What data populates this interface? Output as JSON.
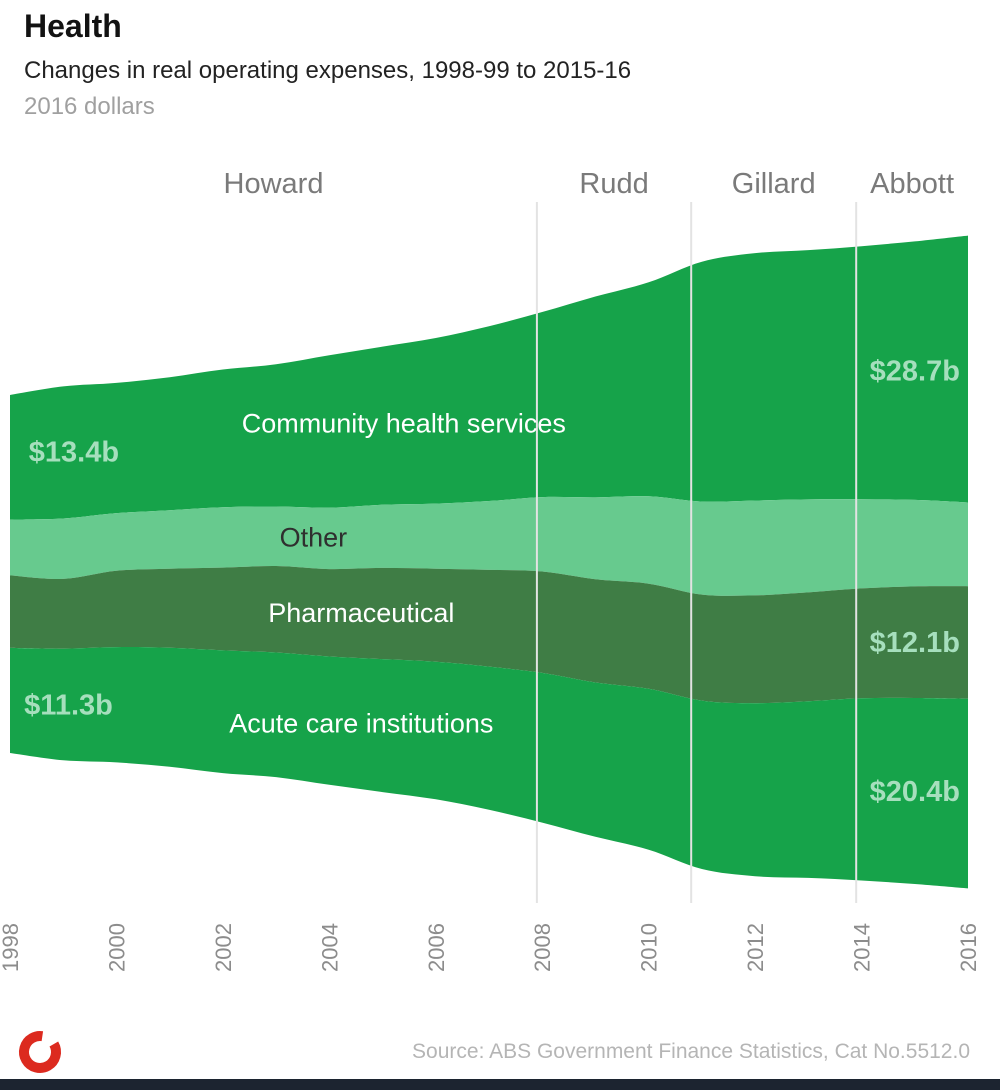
{
  "header": {
    "title": "Health",
    "subtitle": "Changes in real operating expenses, 1998-99 to 2015-16",
    "unit_note": "2016 dollars"
  },
  "chart_data": {
    "type": "area",
    "variant": "streamgraph-stacked",
    "title": "Health",
    "y_unit": "billions of 2016 dollars",
    "x": [
      1998,
      1999,
      2000,
      2001,
      2002,
      2003,
      2004,
      2005,
      2006,
      2007,
      2008,
      2009,
      2010,
      2011,
      2012,
      2013,
      2014,
      2015,
      2016
    ],
    "x_ticks": [
      1998,
      2000,
      2002,
      2004,
      2006,
      2008,
      2010,
      2012,
      2014,
      2016
    ],
    "series": [
      {
        "name": "Community health services",
        "color": "#16a34a",
        "values": [
          13.4,
          14.2,
          14.0,
          14.3,
          14.8,
          15.3,
          16.4,
          17.0,
          17.8,
          18.8,
          19.9,
          21.6,
          23.0,
          25.8,
          26.6,
          26.8,
          27.2,
          27.8,
          28.7
        ]
      },
      {
        "name": "Other",
        "color": "#67ca8e",
        "values": [
          6.0,
          6.5,
          6.2,
          6.3,
          6.5,
          6.4,
          6.6,
          6.8,
          7.0,
          7.4,
          8.0,
          8.8,
          9.4,
          10.0,
          10.2,
          10.0,
          9.6,
          9.3,
          9.0
        ]
      },
      {
        "name": "Pharmaceutical",
        "color": "#3f7d45",
        "values": [
          7.8,
          7.5,
          8.2,
          8.5,
          8.9,
          9.3,
          9.4,
          9.8,
          10.0,
          10.4,
          10.9,
          11.1,
          11.3,
          11.4,
          11.6,
          11.7,
          11.8,
          12.0,
          12.1
        ]
      },
      {
        "name": "Acute care institutions",
        "color": "#16a34a",
        "values": [
          11.3,
          12.0,
          12.4,
          12.8,
          13.2,
          13.4,
          13.8,
          14.3,
          14.8,
          15.4,
          16.1,
          16.6,
          17.3,
          18.1,
          18.6,
          19.0,
          19.6,
          20.0,
          20.4
        ]
      }
    ],
    "eras": [
      {
        "label": "Howard",
        "start": 1998,
        "end": 2007.9
      },
      {
        "label": "Rudd",
        "start": 2007.9,
        "end": 2010.8
      },
      {
        "label": "Gillard",
        "start": 2010.8,
        "end": 2013.9
      },
      {
        "label": "Abbott",
        "start": 2013.9,
        "end": 2016
      }
    ],
    "band_labels": [
      {
        "text": "Community health services",
        "series_index": 0,
        "year": 2005.4,
        "color": "#ffffff"
      },
      {
        "text": "Other",
        "series_index": 1,
        "year": 2003.7,
        "color": "#2f2f2f"
      },
      {
        "text": "Pharmaceutical",
        "series_index": 2,
        "year": 2004.6,
        "color": "#ffffff"
      },
      {
        "text": "Acute care institutions",
        "series_index": 3,
        "year": 2004.6,
        "color": "#ffffff"
      }
    ],
    "value_labels": [
      {
        "text": "$13.4b",
        "series_index": 0,
        "year": 1999.2
      },
      {
        "text": "$11.3b",
        "series_index": 3,
        "year": 1999.1
      },
      {
        "text": "$28.7b",
        "series_index": 0,
        "year": 2015.0
      },
      {
        "text": "$12.1b",
        "series_index": 2,
        "year": 2015.0
      },
      {
        "text": "$20.4b",
        "series_index": 3,
        "year": 2015.0
      }
    ],
    "colors": {
      "era_line": "#e3e3e3",
      "era_label": "#7a7a7a",
      "axis_label": "#8c8c8c",
      "value_label": "#a6dfbd"
    },
    "legend_position": "in-band",
    "grid": false
  },
  "footer": {
    "source": "Source: ABS Government Finance Statistics, Cat No.5512.0",
    "bar_color": "#1c2430",
    "logo_color": "#dc2a1f"
  }
}
